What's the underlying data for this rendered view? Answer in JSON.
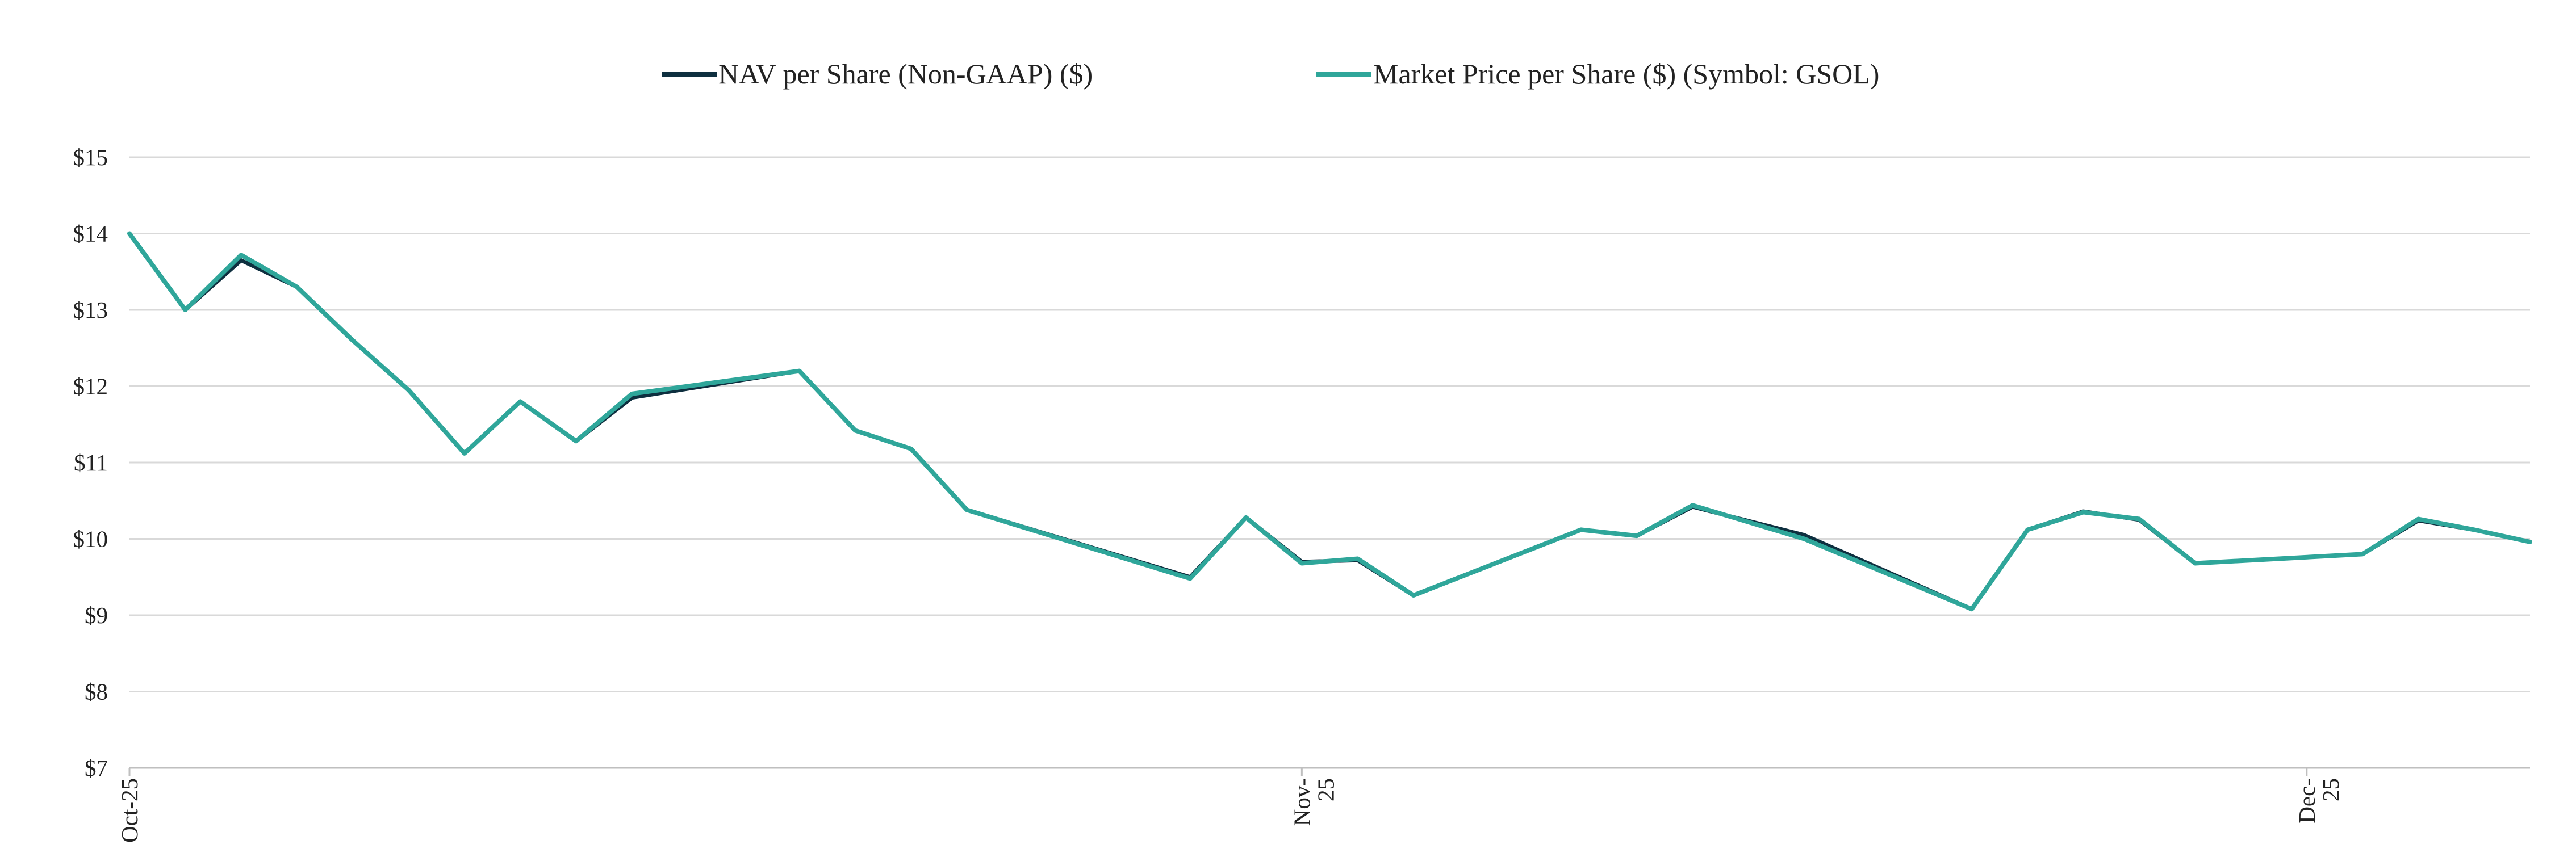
{
  "chart_data": {
    "type": "line",
    "title": "",
    "xlabel": "",
    "ylabel": "",
    "ylim": [
      7,
      15
    ],
    "y_ticks": [
      7,
      8,
      9,
      10,
      11,
      12,
      13,
      14,
      15
    ],
    "y_tick_labels": [
      "$7",
      "$8",
      "$9",
      "$10",
      "$11",
      "$12",
      "$13",
      "$14",
      "$15"
    ],
    "x_range": [
      "2025-10-28",
      "2025-12-10"
    ],
    "x_ticks": [
      {
        "date": "2025-10-28",
        "label": "Oct-25"
      },
      {
        "date": "2025-11-18",
        "label": "Nov-25"
      },
      {
        "date": "2025-12-06",
        "label": "Dec-25"
      }
    ],
    "grid": true,
    "legend_position": "top",
    "series": [
      {
        "name": "NAV per Share (Non-GAAP) ($)",
        "color": "#0e2f3f",
        "points": [
          [
            "2025-10-28",
            14.0
          ],
          [
            "2025-10-29",
            13.0
          ],
          [
            "2025-10-30",
            13.65
          ],
          [
            "2025-10-31",
            13.3
          ],
          [
            "2025-11-01",
            12.6
          ],
          [
            "2025-11-02",
            11.95
          ],
          [
            "2025-11-03",
            11.12
          ],
          [
            "2025-11-04",
            11.8
          ],
          [
            "2025-11-05",
            11.28
          ],
          [
            "2025-11-06",
            11.85
          ],
          [
            "2025-11-09",
            12.2
          ],
          [
            "2025-11-10",
            11.42
          ],
          [
            "2025-11-11",
            11.18
          ],
          [
            "2025-11-12",
            10.38
          ],
          [
            "2025-11-16",
            9.5
          ],
          [
            "2025-11-17",
            10.28
          ],
          [
            "2025-11-18",
            9.7
          ],
          [
            "2025-11-19",
            9.72
          ],
          [
            "2025-11-20",
            9.26
          ],
          [
            "2025-11-23",
            10.12
          ],
          [
            "2025-11-24",
            10.04
          ],
          [
            "2025-11-25",
            10.42
          ],
          [
            "2025-11-27",
            10.05
          ],
          [
            "2025-11-30",
            9.08
          ],
          [
            "2025-12-01",
            10.12
          ],
          [
            "2025-12-02",
            10.36
          ],
          [
            "2025-12-03",
            10.25
          ],
          [
            "2025-12-04",
            9.68
          ],
          [
            "2025-12-07",
            9.8
          ],
          [
            "2025-12-08",
            10.24
          ],
          [
            "2025-12-09",
            10.12
          ],
          [
            "2025-12-10",
            9.96
          ]
        ]
      },
      {
        "name": "Market Price per Share ($) (Symbol: GSOL)",
        "color": "#2fa69a",
        "points": [
          [
            "2025-10-28",
            14.0
          ],
          [
            "2025-10-29",
            13.0
          ],
          [
            "2025-10-30",
            13.72
          ],
          [
            "2025-10-31",
            13.3
          ],
          [
            "2025-11-01",
            12.6
          ],
          [
            "2025-11-02",
            11.95
          ],
          [
            "2025-11-03",
            11.12
          ],
          [
            "2025-11-04",
            11.8
          ],
          [
            "2025-11-05",
            11.28
          ],
          [
            "2025-11-06",
            11.9
          ],
          [
            "2025-11-09",
            12.2
          ],
          [
            "2025-11-10",
            11.42
          ],
          [
            "2025-11-11",
            11.18
          ],
          [
            "2025-11-12",
            10.38
          ],
          [
            "2025-11-16",
            9.48
          ],
          [
            "2025-11-17",
            10.28
          ],
          [
            "2025-11-18",
            9.68
          ],
          [
            "2025-11-19",
            9.74
          ],
          [
            "2025-11-20",
            9.26
          ],
          [
            "2025-11-23",
            10.12
          ],
          [
            "2025-11-24",
            10.04
          ],
          [
            "2025-11-25",
            10.44
          ],
          [
            "2025-11-27",
            10.0
          ],
          [
            "2025-11-30",
            9.08
          ],
          [
            "2025-12-01",
            10.12
          ],
          [
            "2025-12-02",
            10.35
          ],
          [
            "2025-12-03",
            10.26
          ],
          [
            "2025-12-04",
            9.68
          ],
          [
            "2025-12-07",
            9.8
          ],
          [
            "2025-12-08",
            10.26
          ],
          [
            "2025-12-09",
            10.12
          ],
          [
            "2025-12-10",
            9.96
          ]
        ]
      }
    ]
  }
}
